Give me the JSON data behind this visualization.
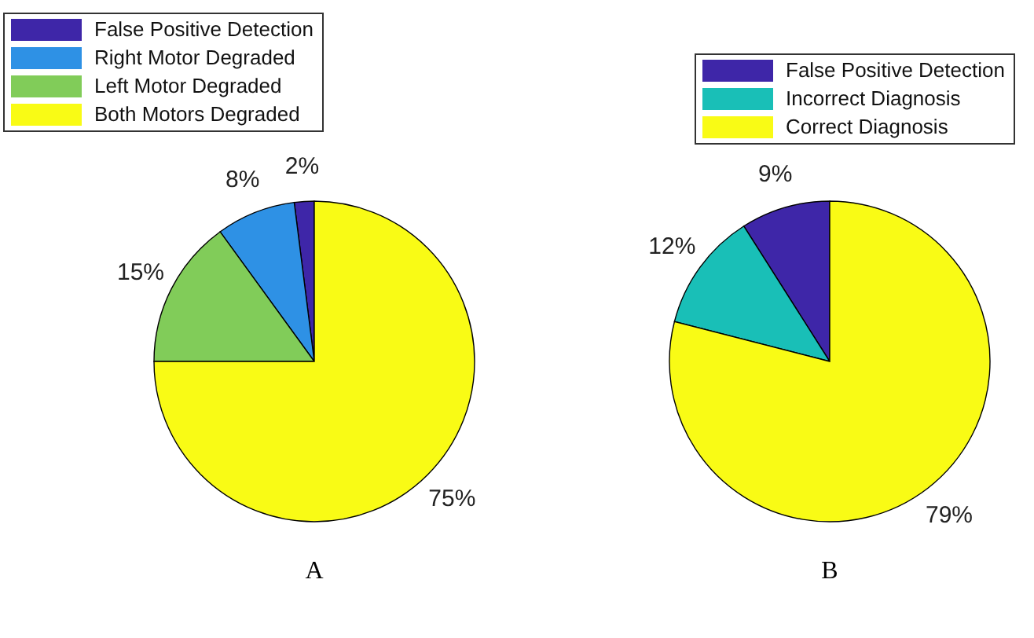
{
  "chart_data": [
    {
      "type": "pie",
      "xlabel": "A",
      "categories": [
        "False Positive Detection",
        "Right Motor Degraded",
        "Left Motor Degraded",
        "Both Motors Degraded"
      ],
      "values": [
        2,
        8,
        15,
        75
      ],
      "value_labels": [
        "2%",
        "8%",
        "15%",
        "75%"
      ],
      "colors": [
        "#3e26a8",
        "#2e91e5",
        "#81cc59",
        "#f9fb15"
      ],
      "legend": "top left"
    },
    {
      "type": "pie",
      "xlabel": "B",
      "categories": [
        "False Positive Detection",
        "Incorrect Diagnosis",
        "Correct Diagnosis"
      ],
      "values": [
        9,
        12,
        79
      ],
      "value_labels": [
        "9%",
        "12%",
        "79%"
      ],
      "colors": [
        "#3e26a8",
        "#19bfb7",
        "#f9fb15"
      ],
      "legend": "top right"
    }
  ]
}
